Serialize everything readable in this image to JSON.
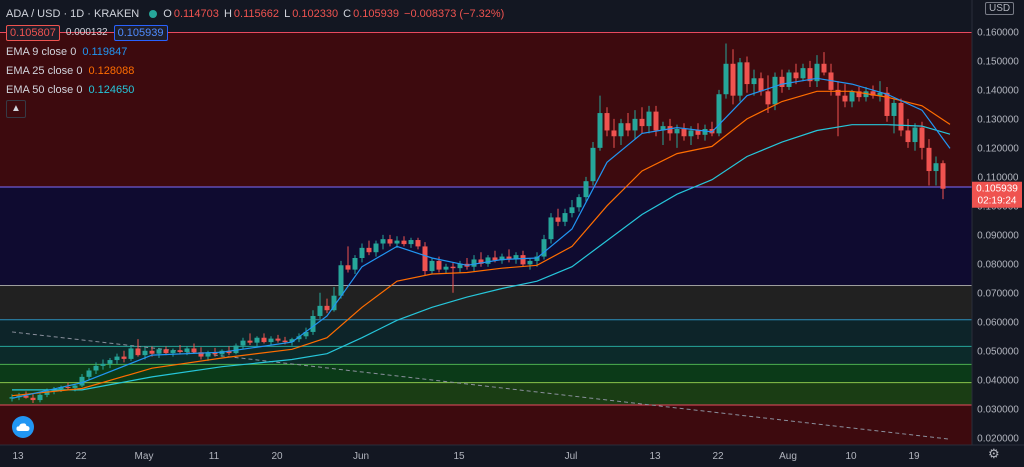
{
  "header": {
    "symbol": "ADA / USD · 1D · KRAKEN",
    "open_label": "O",
    "open": "0.114703",
    "high_label": "H",
    "high": "0.115662",
    "low_label": "L",
    "low": "0.102330",
    "close_label": "C",
    "close": "0.105939",
    "change": "−0.008373 (−7.32%)",
    "bid": "0.105807",
    "spread": "0.000132",
    "ask": "0.105939"
  },
  "indicators": [
    {
      "label": "EMA 9 close 0",
      "value": "0.119847",
      "color": "#2196f3"
    },
    {
      "label": "EMA 25 close 0",
      "value": "0.128088",
      "color": "#ff6d00"
    },
    {
      "label": "EMA 50 close 0",
      "value": "0.124650",
      "color": "#26c6da"
    }
  ],
  "axis": {
    "currency": "USD",
    "price_tag": "0.105939",
    "countdown": "02:19:24"
  },
  "colors": {
    "up": "#26a69a",
    "down": "#ef5350"
  },
  "chart_data": {
    "type": "candlestick",
    "ylim": [
      0.0175,
      0.171
    ],
    "y_ticks": [
      0.02,
      0.03,
      0.04,
      0.05,
      0.06,
      0.07,
      0.08,
      0.09,
      0.1,
      0.11,
      0.12,
      0.13,
      0.14,
      0.15,
      0.16
    ],
    "y_tick_labels": [
      "0.020000",
      "0.030000",
      "0.040000",
      "0.050000",
      "0.060000",
      "0.070000",
      "0.080000",
      "0.090000",
      "0.100000",
      "0.110000",
      "0.120000",
      "0.130000",
      "0.140000",
      "0.150000",
      "0.160000"
    ],
    "x_ticks": [
      {
        "label": "13",
        "index": 0
      },
      {
        "label": "22",
        "index": 9
      },
      {
        "label": "May",
        "index": 18
      },
      {
        "label": "11",
        "index": 28
      },
      {
        "label": "20",
        "index": 37
      },
      {
        "label": "Jun",
        "index": 49
      },
      {
        "label": "15",
        "index": 63
      },
      {
        "label": "Jul",
        "index": 79
      },
      {
        "label": "13",
        "index": 91
      },
      {
        "label": "22",
        "index": 100
      },
      {
        "label": "Aug",
        "index": 110
      },
      {
        "label": "10",
        "index": 119
      },
      {
        "label": "19",
        "index": 128
      }
    ],
    "horizontal_levels": [
      0.1598,
      0.1065,
      0.0725,
      0.0607,
      0.0515,
      0.0453,
      0.039,
      0.0313
    ],
    "zones": [
      {
        "from": 0.1065,
        "to": 0.1598,
        "color": "#3d0a0e"
      },
      {
        "from": 0.0725,
        "to": 0.1065,
        "color": "#0f0b30"
      },
      {
        "from": 0.0607,
        "to": 0.0725,
        "color": "#212121"
      },
      {
        "from": 0.0515,
        "to": 0.0607,
        "color": "#0d2429"
      },
      {
        "from": 0.0453,
        "to": 0.0515,
        "color": "#0c2a2a"
      },
      {
        "from": 0.039,
        "to": 0.0453,
        "color": "#0b3a18"
      },
      {
        "from": 0.0313,
        "to": 0.039,
        "color": "#1a3d14"
      },
      {
        "from": 0.0175,
        "to": 0.0313,
        "color": "#3d0a0e"
      }
    ],
    "trendline": [
      [
        0,
        0.0565
      ],
      [
        134,
        0.0195
      ]
    ],
    "candles": [
      [
        0.0335,
        0.035,
        0.0325,
        0.034
      ],
      [
        0.034,
        0.0355,
        0.033,
        0.0345
      ],
      [
        0.0345,
        0.036,
        0.0335,
        0.0338
      ],
      [
        0.0338,
        0.035,
        0.032,
        0.033
      ],
      [
        0.033,
        0.0352,
        0.0322,
        0.0348
      ],
      [
        0.0348,
        0.037,
        0.034,
        0.0362
      ],
      [
        0.0362,
        0.0375,
        0.035,
        0.0368
      ],
      [
        0.0368,
        0.038,
        0.0358,
        0.0375
      ],
      [
        0.0375,
        0.039,
        0.0365,
        0.0372
      ],
      [
        0.0372,
        0.0385,
        0.036,
        0.038
      ],
      [
        0.038,
        0.042,
        0.0375,
        0.041
      ],
      [
        0.041,
        0.044,
        0.04,
        0.0432
      ],
      [
        0.0432,
        0.046,
        0.042,
        0.0448
      ],
      [
        0.0448,
        0.047,
        0.0435,
        0.0455
      ],
      [
        0.0455,
        0.0475,
        0.044,
        0.0468
      ],
      [
        0.0468,
        0.049,
        0.0455,
        0.048
      ],
      [
        0.048,
        0.05,
        0.046,
        0.0472
      ],
      [
        0.0472,
        0.052,
        0.0465,
        0.0508
      ],
      [
        0.0508,
        0.054,
        0.048,
        0.0485
      ],
      [
        0.0485,
        0.051,
        0.047,
        0.05
      ],
      [
        0.05,
        0.0515,
        0.048,
        0.049
      ],
      [
        0.049,
        0.051,
        0.0475,
        0.0505
      ],
      [
        0.0505,
        0.0515,
        0.0485,
        0.0492
      ],
      [
        0.0492,
        0.0508,
        0.048,
        0.0502
      ],
      [
        0.0502,
        0.052,
        0.049,
        0.0496
      ],
      [
        0.0496,
        0.0515,
        0.0485,
        0.0508
      ],
      [
        0.0508,
        0.0525,
        0.049,
        0.0495
      ],
      [
        0.0495,
        0.0512,
        0.047,
        0.048
      ],
      [
        0.048,
        0.05,
        0.0465,
        0.0495
      ],
      [
        0.0495,
        0.051,
        0.048,
        0.0488
      ],
      [
        0.0488,
        0.0505,
        0.0478,
        0.05
      ],
      [
        0.05,
        0.0515,
        0.0485,
        0.0492
      ],
      [
        0.0492,
        0.0525,
        0.0488,
        0.0518
      ],
      [
        0.0518,
        0.0545,
        0.0505,
        0.0535
      ],
      [
        0.0535,
        0.056,
        0.052,
        0.0528
      ],
      [
        0.0528,
        0.055,
        0.0515,
        0.0545
      ],
      [
        0.0545,
        0.056,
        0.0525,
        0.053
      ],
      [
        0.053,
        0.055,
        0.052,
        0.0542
      ],
      [
        0.0542,
        0.0555,
        0.0528,
        0.0535
      ],
      [
        0.0535,
        0.0548,
        0.0522,
        0.053
      ],
      [
        0.053,
        0.0545,
        0.0518,
        0.054
      ],
      [
        0.054,
        0.056,
        0.053,
        0.055
      ],
      [
        0.055,
        0.058,
        0.054,
        0.0565
      ],
      [
        0.0565,
        0.064,
        0.0555,
        0.062
      ],
      [
        0.062,
        0.07,
        0.061,
        0.0655
      ],
      [
        0.0655,
        0.068,
        0.063,
        0.064
      ],
      [
        0.064,
        0.072,
        0.0635,
        0.069
      ],
      [
        0.069,
        0.081,
        0.068,
        0.0795
      ],
      [
        0.0795,
        0.086,
        0.077,
        0.078
      ],
      [
        0.078,
        0.083,
        0.0765,
        0.082
      ],
      [
        0.082,
        0.087,
        0.0805,
        0.0855
      ],
      [
        0.0855,
        0.088,
        0.083,
        0.084
      ],
      [
        0.084,
        0.088,
        0.0825,
        0.087
      ],
      [
        0.087,
        0.09,
        0.085,
        0.0885
      ],
      [
        0.0885,
        0.09,
        0.086,
        0.087
      ],
      [
        0.087,
        0.0895,
        0.0855,
        0.088
      ],
      [
        0.088,
        0.0895,
        0.086,
        0.0868
      ],
      [
        0.0868,
        0.089,
        0.0855,
        0.0882
      ],
      [
        0.0882,
        0.089,
        0.085,
        0.086
      ],
      [
        0.086,
        0.0875,
        0.076,
        0.0775
      ],
      [
        0.0775,
        0.082,
        0.0765,
        0.081
      ],
      [
        0.081,
        0.0825,
        0.077,
        0.078
      ],
      [
        0.078,
        0.08,
        0.0765,
        0.079
      ],
      [
        0.079,
        0.0805,
        0.07,
        0.0785
      ],
      [
        0.0785,
        0.081,
        0.077,
        0.08
      ],
      [
        0.08,
        0.082,
        0.078,
        0.079
      ],
      [
        0.079,
        0.083,
        0.0775,
        0.0815
      ],
      [
        0.0815,
        0.084,
        0.079,
        0.08
      ],
      [
        0.08,
        0.083,
        0.079,
        0.0822
      ],
      [
        0.0822,
        0.0845,
        0.0805,
        0.0812
      ],
      [
        0.0812,
        0.0835,
        0.08,
        0.0825
      ],
      [
        0.0825,
        0.085,
        0.0805,
        0.0815
      ],
      [
        0.0815,
        0.084,
        0.08,
        0.083
      ],
      [
        0.083,
        0.0845,
        0.079,
        0.0798
      ],
      [
        0.0798,
        0.082,
        0.078,
        0.081
      ],
      [
        0.081,
        0.084,
        0.079,
        0.0825
      ],
      [
        0.0825,
        0.09,
        0.0815,
        0.0885
      ],
      [
        0.0885,
        0.0975,
        0.087,
        0.096
      ],
      [
        0.096,
        0.099,
        0.093,
        0.0945
      ],
      [
        0.0945,
        0.099,
        0.093,
        0.0975
      ],
      [
        0.0975,
        0.102,
        0.096,
        0.0995
      ],
      [
        0.0995,
        0.104,
        0.098,
        0.103
      ],
      [
        0.103,
        0.11,
        0.1015,
        0.1085
      ],
      [
        0.1085,
        0.122,
        0.107,
        0.12
      ],
      [
        0.12,
        0.138,
        0.119,
        0.132
      ],
      [
        0.132,
        0.134,
        0.124,
        0.126
      ],
      [
        0.126,
        0.13,
        0.12,
        0.124
      ],
      [
        0.124,
        0.13,
        0.121,
        0.1285
      ],
      [
        0.1285,
        0.132,
        0.124,
        0.126
      ],
      [
        0.126,
        0.133,
        0.123,
        0.13
      ],
      [
        0.13,
        0.134,
        0.125,
        0.1275
      ],
      [
        0.1275,
        0.1345,
        0.125,
        0.1325
      ],
      [
        0.1325,
        0.1345,
        0.124,
        0.126
      ],
      [
        0.126,
        0.129,
        0.121,
        0.1275
      ],
      [
        0.1275,
        0.13,
        0.1225,
        0.125
      ],
      [
        0.125,
        0.128,
        0.12,
        0.1265
      ],
      [
        0.1265,
        0.1285,
        0.1225,
        0.124
      ],
      [
        0.124,
        0.1275,
        0.121,
        0.126
      ],
      [
        0.126,
        0.1285,
        0.123,
        0.1245
      ],
      [
        0.1245,
        0.128,
        0.1225,
        0.1265
      ],
      [
        0.1265,
        0.129,
        0.124,
        0.125
      ],
      [
        0.125,
        0.14,
        0.124,
        0.1385
      ],
      [
        0.1385,
        0.156,
        0.137,
        0.149
      ],
      [
        0.149,
        0.154,
        0.135,
        0.138
      ],
      [
        0.138,
        0.151,
        0.136,
        0.1495
      ],
      [
        0.1495,
        0.1515,
        0.139,
        0.142
      ],
      [
        0.142,
        0.147,
        0.138,
        0.144
      ],
      [
        0.144,
        0.146,
        0.138,
        0.1395
      ],
      [
        0.1395,
        0.145,
        0.132,
        0.135
      ],
      [
        0.135,
        0.146,
        0.133,
        0.1445
      ],
      [
        0.1445,
        0.147,
        0.139,
        0.141
      ],
      [
        0.141,
        0.147,
        0.14,
        0.146
      ],
      [
        0.146,
        0.149,
        0.142,
        0.144
      ],
      [
        0.144,
        0.149,
        0.143,
        0.1475
      ],
      [
        0.1475,
        0.15,
        0.141,
        0.143
      ],
      [
        0.143,
        0.152,
        0.141,
        0.149
      ],
      [
        0.149,
        0.153,
        0.145,
        0.146
      ],
      [
        0.146,
        0.149,
        0.138,
        0.14
      ],
      [
        0.14,
        0.143,
        0.124,
        0.138
      ],
      [
        0.138,
        0.142,
        0.134,
        0.136
      ],
      [
        0.136,
        0.14,
        0.134,
        0.1395
      ],
      [
        0.1395,
        0.141,
        0.136,
        0.1375
      ],
      [
        0.1375,
        0.141,
        0.136,
        0.1395
      ],
      [
        0.1395,
        0.1415,
        0.137,
        0.138
      ],
      [
        0.138,
        0.143,
        0.136,
        0.139
      ],
      [
        0.139,
        0.141,
        0.129,
        0.131
      ],
      [
        0.131,
        0.137,
        0.125,
        0.1355
      ],
      [
        0.1355,
        0.137,
        0.124,
        0.126
      ],
      [
        0.126,
        0.13,
        0.12,
        0.122
      ],
      [
        0.122,
        0.1285,
        0.119,
        0.127
      ],
      [
        0.127,
        0.129,
        0.116,
        0.12
      ],
      [
        0.12,
        0.123,
        0.107,
        0.112
      ],
      [
        0.112,
        0.117,
        0.107,
        0.1147
      ],
      [
        0.1147,
        0.1157,
        0.1023,
        0.1059
      ]
    ],
    "ema9": [
      [
        0,
        0.0336
      ],
      [
        10,
        0.039
      ],
      [
        20,
        0.0485
      ],
      [
        30,
        0.0495
      ],
      [
        40,
        0.053
      ],
      [
        45,
        0.062
      ],
      [
        50,
        0.079
      ],
      [
        55,
        0.086
      ],
      [
        60,
        0.082
      ],
      [
        65,
        0.0795
      ],
      [
        70,
        0.0815
      ],
      [
        75,
        0.082
      ],
      [
        80,
        0.092
      ],
      [
        85,
        0.115
      ],
      [
        90,
        0.125
      ],
      [
        95,
        0.127
      ],
      [
        100,
        0.1255
      ],
      [
        105,
        0.138
      ],
      [
        110,
        0.142
      ],
      [
        115,
        0.144
      ],
      [
        120,
        0.142
      ],
      [
        125,
        0.1385
      ],
      [
        130,
        0.133
      ],
      [
        134,
        0.1198
      ]
    ],
    "ema25": [
      [
        0,
        0.0345
      ],
      [
        10,
        0.037
      ],
      [
        20,
        0.044
      ],
      [
        30,
        0.0475
      ],
      [
        40,
        0.0505
      ],
      [
        45,
        0.0545
      ],
      [
        50,
        0.065
      ],
      [
        55,
        0.074
      ],
      [
        60,
        0.0765
      ],
      [
        65,
        0.077
      ],
      [
        70,
        0.0785
      ],
      [
        75,
        0.0795
      ],
      [
        80,
        0.086
      ],
      [
        85,
        0.1
      ],
      [
        90,
        0.112
      ],
      [
        95,
        0.118
      ],
      [
        100,
        0.1205
      ],
      [
        105,
        0.13
      ],
      [
        110,
        0.136
      ],
      [
        115,
        0.1395
      ],
      [
        120,
        0.1395
      ],
      [
        125,
        0.1375
      ],
      [
        130,
        0.1345
      ],
      [
        134,
        0.1281
      ]
    ],
    "ema50": [
      [
        0,
        0.0365
      ],
      [
        10,
        0.0365
      ],
      [
        20,
        0.041
      ],
      [
        30,
        0.0445
      ],
      [
        40,
        0.047
      ],
      [
        45,
        0.049
      ],
      [
        50,
        0.0545
      ],
      [
        55,
        0.0605
      ],
      [
        60,
        0.065
      ],
      [
        65,
        0.0685
      ],
      [
        70,
        0.0715
      ],
      [
        75,
        0.074
      ],
      [
        80,
        0.079
      ],
      [
        85,
        0.088
      ],
      [
        90,
        0.097
      ],
      [
        95,
        0.104
      ],
      [
        100,
        0.109
      ],
      [
        105,
        0.117
      ],
      [
        110,
        0.122
      ],
      [
        115,
        0.126
      ],
      [
        120,
        0.128
      ],
      [
        125,
        0.128
      ],
      [
        130,
        0.1275
      ],
      [
        134,
        0.1247
      ]
    ]
  }
}
